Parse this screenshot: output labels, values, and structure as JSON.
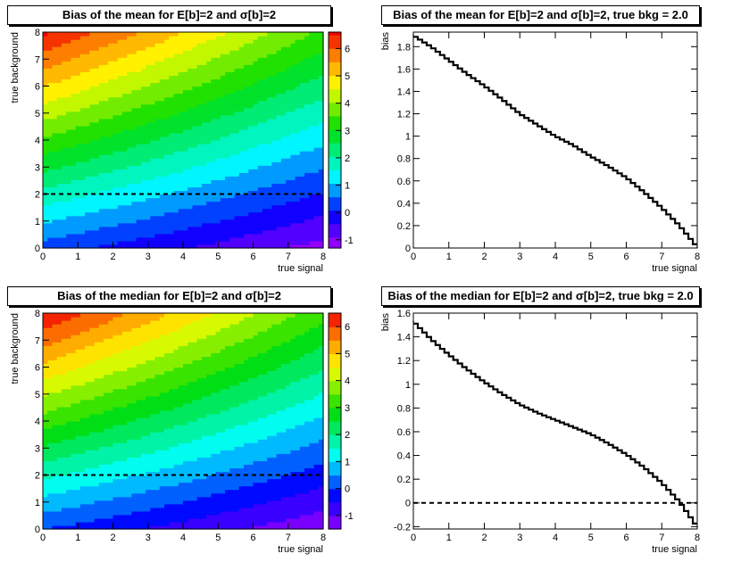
{
  "chart_data": [
    {
      "type": "heatmap",
      "title": "Bias of the mean for E[b]=2 and σ[b]=2",
      "xlabel": "true signal",
      "ylabel": "true background",
      "xlim": [
        0,
        8
      ],
      "ylim": [
        0,
        8
      ],
      "xticks": [
        0,
        1,
        2,
        3,
        4,
        5,
        6,
        7,
        8
      ],
      "yticks": [
        0,
        1,
        2,
        3,
        4,
        5,
        6,
        7,
        8
      ],
      "zlim": [
        -1.3,
        6.6
      ],
      "zticks": [
        -1,
        0,
        1,
        2,
        3,
        4,
        5,
        6
      ],
      "contour_step": 0.5,
      "reference_line": {
        "y": 2,
        "style": "dashed"
      },
      "corner_values": {
        "s0_b0": 0.25,
        "s8_b0": -1.2,
        "s0_b8": 6.6,
        "s8_b8": 3.4
      }
    },
    {
      "type": "line",
      "title": "Bias of the mean for E[b]=2 and σ[b]=2, true bkg = 2.0",
      "xlabel": "true signal",
      "ylabel": "bias",
      "xlim": [
        0,
        8
      ],
      "ylim": [
        0,
        1.93
      ],
      "xticks": [
        0,
        1,
        2,
        3,
        4,
        5,
        6,
        7,
        8
      ],
      "yticks": [
        0,
        0.2,
        0.4,
        0.6,
        0.8,
        1,
        1.2,
        1.4,
        1.6,
        1.8
      ],
      "x": [
        0,
        0.5,
        1,
        1.5,
        2,
        2.5,
        3,
        3.5,
        4,
        4.5,
        5,
        5.5,
        6,
        6.5,
        7,
        7.5,
        8
      ],
      "y": [
        1.9,
        1.8,
        1.68,
        1.56,
        1.45,
        1.33,
        1.2,
        1.1,
        1.0,
        0.92,
        0.82,
        0.73,
        0.63,
        0.5,
        0.36,
        0.2,
        0.01
      ]
    },
    {
      "type": "heatmap",
      "title": "Bias of the median for E[b]=2 and σ[b]=2",
      "xlabel": "true signal",
      "ylabel": "true background",
      "xlim": [
        0,
        8
      ],
      "ylim": [
        0,
        8
      ],
      "xticks": [
        0,
        1,
        2,
        3,
        4,
        5,
        6,
        7,
        8
      ],
      "yticks": [
        0,
        1,
        2,
        3,
        4,
        5,
        6,
        7,
        8
      ],
      "zlim": [
        -1.5,
        6.5
      ],
      "zticks": [
        -1,
        0,
        1,
        2,
        3,
        4,
        5,
        6
      ],
      "contour_step": 0.5,
      "reference_line": {
        "y": 2,
        "style": "dashed"
      },
      "corner_values": {
        "s0_b0": 0.0,
        "s8_b0": -1.4,
        "s0_b8": 6.5,
        "s8_b8": 3.2
      }
    },
    {
      "type": "line",
      "title": "Bias of the median for E[b]=2 and σ[b]=2, true bkg = 2.0",
      "xlabel": "true signal",
      "ylabel": "bias",
      "xlim": [
        0,
        8
      ],
      "ylim": [
        -0.22,
        1.6
      ],
      "xticks": [
        0,
        1,
        2,
        3,
        4,
        5,
        6,
        7,
        8
      ],
      "yticks": [
        -0.2,
        0,
        0.2,
        0.4,
        0.6,
        0.8,
        1,
        1.2,
        1.4,
        1.6
      ],
      "reference_line": {
        "y": 0,
        "style": "dashed"
      },
      "x": [
        0,
        0.5,
        1,
        1.5,
        2,
        2.5,
        3,
        3.5,
        4,
        4.5,
        5,
        5.5,
        6,
        6.5,
        7,
        7.5,
        8
      ],
      "y": [
        1.53,
        1.38,
        1.25,
        1.13,
        1.02,
        0.92,
        0.83,
        0.76,
        0.7,
        0.64,
        0.58,
        0.5,
        0.41,
        0.3,
        0.17,
        0.01,
        -0.2
      ]
    }
  ]
}
